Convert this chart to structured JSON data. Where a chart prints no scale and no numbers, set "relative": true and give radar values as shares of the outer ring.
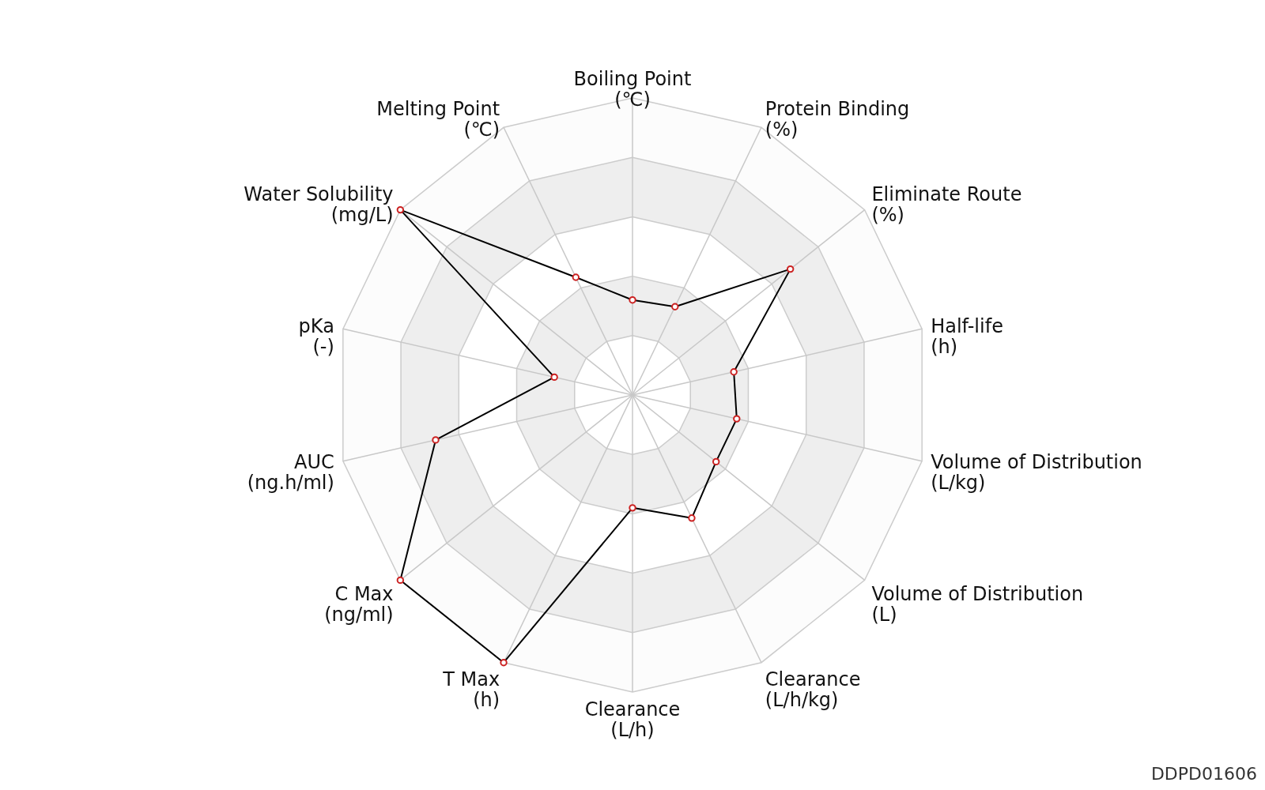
{
  "chart_data": {
    "type": "radar",
    "relative": true,
    "grid": true,
    "marker": "circle",
    "categories": [
      "Boiling Point\n(℃)",
      "Protein Binding\n(%)",
      "Eliminate Route\n(%)",
      "Half-life\n(h)",
      "Volume of Distribution\n(L/kg)",
      "Volume of Distribution\n(L)",
      "Clearance\n(L/h/kg)",
      "Clearance\n(L/h)",
      "T Max\n(h)",
      "C Max\n(ng/ml)",
      "AUC\n(ng.h/ml)",
      "pKa\n(-)",
      "Water Solubility\n(mg/L)",
      "Melting Point\n(℃)"
    ],
    "series": [
      {
        "color": "#000000",
        "values": [
          0.32,
          0.33,
          0.68,
          0.35,
          0.36,
          0.36,
          0.46,
          0.38,
          1.0,
          1.0,
          0.68,
          0.27,
          1.0,
          0.44
        ]
      }
    ],
    "annotations": [
      "DDPD01606"
    ]
  }
}
